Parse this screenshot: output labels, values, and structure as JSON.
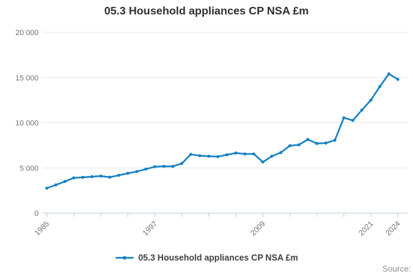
{
  "page": {
    "title": "05.3 Household appliances CP NSA £m",
    "legend": {
      "label": "05.3 Household appliances CP NSA £m"
    },
    "source": {
      "label": "Source:"
    }
  },
  "chart_data": {
    "type": "line",
    "title": "05.3 Household appliances CP NSA £m",
    "xlabel": "",
    "ylabel": "",
    "x": [
      1985,
      1986,
      1987,
      1988,
      1989,
      1990,
      1991,
      1992,
      1993,
      1994,
      1995,
      1996,
      1997,
      1998,
      1999,
      2000,
      2001,
      2002,
      2003,
      2004,
      2005,
      2006,
      2007,
      2008,
      2009,
      2010,
      2011,
      2012,
      2013,
      2014,
      2015,
      2016,
      2017,
      2018,
      2019,
      2020,
      2021,
      2022,
      2023,
      2024
    ],
    "series": [
      {
        "name": "05.3 Household appliances CP NSA £m",
        "color": "#1380c4",
        "values": [
          2760,
          3120,
          3500,
          3900,
          3960,
          4030,
          4100,
          3980,
          4180,
          4400,
          4600,
          4870,
          5130,
          5180,
          5170,
          5500,
          6500,
          6350,
          6300,
          6250,
          6450,
          6650,
          6550,
          6550,
          5650,
          6300,
          6700,
          7460,
          7550,
          8150,
          7700,
          7750,
          8070,
          10550,
          10250,
          11400,
          12500,
          14000,
          15400,
          14800
        ]
      }
    ],
    "ylim": [
      0,
      20000
    ],
    "yticks": {
      "values": [
        0,
        5000,
        10000,
        15000,
        20000
      ],
      "labels": [
        "0",
        "5 000",
        "10 000",
        "15 000",
        "20 000"
      ]
    },
    "xticks": {
      "start": 1985,
      "end": 2024,
      "step": 3,
      "labeled_years": [
        1985,
        1997,
        2009,
        2021,
        2024
      ]
    },
    "grid": "horizontal-only",
    "legend_position": "bottom",
    "colors": {
      "grid": "#e6e6e6",
      "axis": "#b9cbdd",
      "tick_text": "#707070",
      "title_text": "#2f2f2f",
      "legend_text": "#404040",
      "source_text": "#8c8c8c"
    }
  }
}
